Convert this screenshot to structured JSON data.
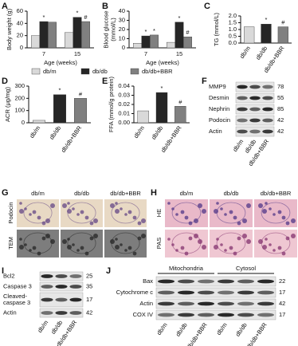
{
  "chart_data": [
    {
      "type": "bar",
      "panel": "A",
      "ylabel": [
        "Body weight (g)"
      ],
      "xlabel": "Age (weeks)",
      "categories": [
        "7",
        "15"
      ],
      "series": [
        {
          "name": "db/m",
          "color": "#d9d9d9",
          "values": [
            20,
            25
          ],
          "marks": [
            null,
            null
          ]
        },
        {
          "name": "db/db",
          "color": "#262626",
          "values": [
            43,
            50
          ],
          "marks": [
            "*",
            "*"
          ]
        },
        {
          "name": "db/db+BBR",
          "color": "#808080",
          "values": [
            42,
            43
          ],
          "marks": [
            null,
            "#"
          ]
        }
      ],
      "ylim": [
        0,
        60
      ],
      "yticks": [
        0,
        20,
        40,
        60
      ]
    },
    {
      "type": "bar",
      "panel": "B",
      "ylabel": [
        "Blood glucose",
        "(mmol/L)"
      ],
      "xlabel": "Age (weeks)",
      "categories": [
        "7",
        "15"
      ],
      "series": [
        {
          "name": "db/m",
          "color": "#d9d9d9",
          "values": [
            5,
            6
          ],
          "marks": [
            null,
            null
          ]
        },
        {
          "name": "db/db",
          "color": "#262626",
          "values": [
            13,
            28
          ],
          "marks": [
            "*",
            "*"
          ]
        },
        {
          "name": "db/db+BBR",
          "color": "#808080",
          "values": [
            14,
            12
          ],
          "marks": [
            "*",
            "#"
          ]
        }
      ],
      "ylim": [
        0,
        40
      ],
      "yticks": [
        0,
        10,
        20,
        30,
        40
      ]
    },
    {
      "type": "bar",
      "panel": "C",
      "ylabel": [
        "TG (mmol/L)"
      ],
      "categories": [
        "db/m",
        "db/db",
        "db/db+BBR"
      ],
      "values": [
        1.2,
        1.4,
        1.2
      ],
      "colors": [
        "#d9d9d9",
        "#262626",
        "#808080"
      ],
      "marks": [
        null,
        "*",
        "#"
      ],
      "ylim": [
        0,
        2
      ],
      "yticks": [
        {
          "value": 0,
          "label": "0.0"
        },
        0.5,
        {
          "value": 1,
          "label": "1.0"
        },
        1.5,
        {
          "value": 2,
          "label": "2.0"
        }
      ]
    },
    {
      "type": "bar",
      "panel": "D",
      "ylabel": [
        "ACR (μg/mg)"
      ],
      "categories": [
        "db/m",
        "db/db",
        "db/db+BBR"
      ],
      "values": [
        20,
        230,
        200
      ],
      "colors": [
        "#d9d9d9",
        "#262626",
        "#808080"
      ],
      "marks": [
        null,
        "*",
        "#"
      ],
      "ylim": [
        0,
        300
      ],
      "yticks": [
        0,
        100,
        200,
        300
      ]
    },
    {
      "type": "bar",
      "panel": "E",
      "ylabel": [
        "FFA (mmol/g protein)"
      ],
      "categories": [
        "db/m",
        "db/db",
        "db/db+BBR"
      ],
      "values": [
        0.013,
        0.033,
        0.018
      ],
      "colors": [
        "#d9d9d9",
        "#262626",
        "#808080"
      ],
      "marks": [
        null,
        "*",
        "#"
      ],
      "ylim": [
        0,
        0.04
      ],
      "yticks": [
        {
          "value": 0,
          "label": "0.00"
        },
        0.01,
        0.02,
        0.03,
        0.04
      ]
    }
  ],
  "blot_f": {
    "panel": "F",
    "lanes": [
      "db/m",
      "db/db",
      "db/db+BBR"
    ],
    "rows": [
      {
        "label": [
          "MMP9"
        ],
        "kda": 78
      },
      {
        "label": [
          "Desmin"
        ],
        "kda": 55
      },
      {
        "label": [
          "Nephrin"
        ],
        "kda": 85
      },
      {
        "label": [
          "Podocin"
        ],
        "kda": 42
      },
      {
        "label": [
          "Actin"
        ],
        "kda": 42
      }
    ]
  },
  "images_g": {
    "panel": "G",
    "columns": [
      "db/m",
      "db/db",
      "db/db+BBR"
    ],
    "rows": [
      "Podocin",
      "TEM"
    ]
  },
  "images_h": {
    "panel": "H",
    "columns": [
      "db/m",
      "db/db",
      "db/db+BBR"
    ],
    "rows": [
      "HE",
      "PAS"
    ]
  },
  "blot_i": {
    "panel": "I",
    "lanes": [
      "db/m",
      "db/db",
      "db/db+BBR"
    ],
    "rows": [
      {
        "label": [
          "Bcl2"
        ],
        "kda": 25
      },
      {
        "label": [
          "Caspase 3"
        ],
        "kda": 35
      },
      {
        "label": [
          "Cleaved-",
          "caspase 3"
        ],
        "kda": 17
      },
      {
        "label": [
          "Actin"
        ],
        "kda": 42
      }
    ]
  },
  "blot_j": {
    "panel": "J",
    "groups": [
      "Mitochondria",
      "Cytosol"
    ],
    "lanes": [
      "db/m",
      "db/db",
      "db/db+BBR",
      "db/m",
      "db/db",
      "db/db+BBR"
    ],
    "rows": [
      {
        "label": [
          "Bax"
        ],
        "kda": 22
      },
      {
        "label": [
          "Cytochrome c"
        ],
        "kda": 17
      },
      {
        "label": [
          "Actin"
        ],
        "kda": 42
      },
      {
        "label": [
          "COX IV"
        ],
        "kda": 17
      }
    ]
  }
}
